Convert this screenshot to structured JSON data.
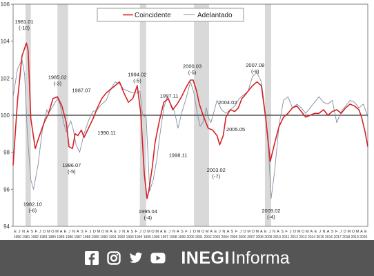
{
  "chart_data": {
    "type": "line",
    "legend": {
      "position": "top",
      "entries": [
        "Coincidente",
        "Adelantado"
      ]
    },
    "colors": {
      "Coincidente": "#d62027",
      "Adelantado": "#7f8f9f",
      "recession_band": "#d9d9d9",
      "reference_line": "#000000"
    },
    "ylim": [
      94,
      106
    ],
    "yticks": [
      "94",
      "96",
      "98",
      "100",
      "102",
      "104",
      "106"
    ],
    "reference_line": 100,
    "grid": false,
    "month_labels": [
      "E",
      "J",
      "N",
      "A",
      "S",
      "F",
      "J",
      "D",
      "M",
      "O",
      "M",
      "A",
      "E",
      "J",
      "N",
      "A",
      "S",
      "F",
      "J",
      "D",
      "M",
      "O",
      "M",
      "A",
      "E",
      "J",
      "N",
      "A",
      "S",
      "F",
      "J",
      "D",
      "M",
      "O",
      "M",
      "A",
      "E",
      "J",
      "N",
      "A",
      "S",
      "F",
      "J",
      "D",
      "M",
      "O",
      "M",
      "A",
      "E",
      "J",
      "N",
      "A",
      "S",
      "F",
      "J",
      "D",
      "M",
      "O",
      "M",
      "A",
      "E",
      "J",
      "N",
      "A",
      "S",
      "F",
      "J",
      "D",
      "M",
      "O",
      "M",
      "A",
      "E",
      "J",
      "N",
      "A",
      "S",
      "F",
      "J",
      "D",
      "M",
      "O",
      "M",
      "A",
      "E"
    ],
    "year_labels": [
      "1980",
      "1981",
      "1982",
      "1983",
      "1984",
      "1985",
      "1986",
      "1987",
      "1988",
      "1989",
      "1990",
      "1991",
      "1992",
      "1993",
      "1994",
      "1995",
      "1996",
      "1997",
      "1998",
      "1999",
      "2000",
      "2001",
      "2002",
      "2003",
      "2004",
      "2005",
      "2006",
      "2007",
      "2008",
      "2009",
      "2010",
      "2011",
      "2012",
      "2013",
      "2014",
      "2015",
      "2016",
      "2017",
      "2018",
      "2019",
      "2020"
    ],
    "recession_bands": [
      [
        1981.4,
        1982.0
      ],
      [
        1985.0,
        1986.2
      ],
      [
        1994.3,
        1995.0
      ],
      [
        2000.4,
        2002.1
      ],
      [
        2008.4,
        2009.1
      ]
    ],
    "series": [
      {
        "name": "Coincidente",
        "x": [
          1980.0,
          1980.5,
          1981.0,
          1981.5,
          1981.7,
          1982.0,
          1982.5,
          1982.9,
          1983.5,
          1984.0,
          1984.5,
          1985.0,
          1985.5,
          1986.0,
          1986.3,
          1986.7,
          1987.0,
          1987.3,
          1987.7,
          1988.0,
          1988.5,
          1989.0,
          1989.5,
          1990.0,
          1990.5,
          1991.0,
          1991.5,
          1992.0,
          1992.5,
          1993.0,
          1993.5,
          1994.0,
          1994.4,
          1994.8,
          1995.1,
          1995.3,
          1995.7,
          1996.0,
          1996.5,
          1997.0,
          1997.5,
          1998.0,
          1998.5,
          1999.0,
          1999.5,
          2000.0,
          2000.3,
          2000.7,
          2001.0,
          2001.5,
          2002.0,
          2002.5,
          2003.0,
          2003.3,
          2003.7,
          2004.0,
          2004.5,
          2005.0,
          2005.4,
          2005.8,
          2006.0,
          2006.5,
          2007.0,
          2007.5,
          2008.0,
          2008.5,
          2009.0,
          2009.2,
          2009.6,
          2010.0,
          2010.5,
          2011.0,
          2011.5,
          2012.0,
          2012.5,
          2013.0,
          2013.5,
          2014.0,
          2014.5,
          2015.0,
          2015.5,
          2016.0,
          2016.5,
          2017.0,
          2017.5,
          2018.0,
          2018.5,
          2019.0,
          2019.3,
          2019.7,
          2020.0
        ],
        "y": [
          97.3,
          100.8,
          103.2,
          103.9,
          103.5,
          99.8,
          98.2,
          98.8,
          99.6,
          100.1,
          100.9,
          101.0,
          100.5,
          99.6,
          98.3,
          98.2,
          99.0,
          98.9,
          99.2,
          98.8,
          99.3,
          99.8,
          100.4,
          100.9,
          101.2,
          101.4,
          101.6,
          101.8,
          101.2,
          100.7,
          100.9,
          101.6,
          100.1,
          96.8,
          95.5,
          95.9,
          97.2,
          98.5,
          99.7,
          100.7,
          100.9,
          100.3,
          100.6,
          101.0,
          101.5,
          101.9,
          101.9,
          101.3,
          100.6,
          99.9,
          99.3,
          99.2,
          98.9,
          98.4,
          98.9,
          99.9,
          100.3,
          100.2,
          100.4,
          100.9,
          101.0,
          101.3,
          101.6,
          101.8,
          101.6,
          99.8,
          97.5,
          97.9,
          98.7,
          99.4,
          99.9,
          100.1,
          100.4,
          100.5,
          100.2,
          99.9,
          100.0,
          100.1,
          100.1,
          100.3,
          100.0,
          100.2,
          100.3,
          100.1,
          100.4,
          100.6,
          100.5,
          100.3,
          99.9,
          99.1,
          98.3
        ]
      },
      {
        "name": "Adelantado",
        "x": [
          1980.0,
          1980.5,
          1981.0,
          1981.3,
          1981.6,
          1982.0,
          1982.3,
          1982.8,
          1983.3,
          1983.8,
          1984.0,
          1984.5,
          1985.0,
          1985.3,
          1985.7,
          1986.0,
          1986.5,
          1986.8,
          1987.1,
          1987.5,
          1988.0,
          1988.5,
          1989.0,
          1989.5,
          1990.0,
          1990.5,
          1991.0,
          1991.5,
          1992.0,
          1992.5,
          1993.0,
          1993.5,
          1994.0,
          1994.3,
          1994.6,
          1995.0,
          1995.4,
          1995.8,
          1996.2,
          1996.6,
          1997.0,
          1997.4,
          1997.8,
          1998.2,
          1998.6,
          1999.0,
          1999.5,
          2000.0,
          2000.4,
          2000.8,
          2001.1,
          2001.4,
          2001.8,
          2002.0,
          2002.3,
          2002.6,
          2003.0,
          2003.5,
          2004.0,
          2004.5,
          2005.0,
          2005.5,
          2006.0,
          2006.5,
          2007.0,
          2007.5,
          2008.0,
          2008.4,
          2008.8,
          2009.1,
          2009.5,
          2010.0,
          2010.5,
          2011.0,
          2011.5,
          2012.0,
          2012.5,
          2013.0,
          2013.5,
          2014.0,
          2014.5,
          2015.0,
          2015.5,
          2016.0,
          2016.5,
          2017.0,
          2017.5,
          2018.0,
          2018.5,
          2019.0,
          2019.5,
          2020.0
        ],
        "y": [
          101.0,
          102.5,
          103.0,
          102.2,
          99.0,
          96.5,
          96.0,
          97.3,
          99.2,
          100.3,
          100.1,
          100.5,
          100.9,
          100.6,
          99.6,
          99.1,
          99.7,
          99.2,
          98.4,
          98.0,
          99.0,
          99.7,
          100.2,
          100.3,
          100.6,
          100.8,
          101.4,
          101.8,
          101.7,
          101.4,
          101.3,
          101.2,
          101.2,
          101.3,
          100.0,
          99.9,
          95.9,
          96.5,
          97.6,
          99.1,
          100.4,
          101.0,
          100.6,
          100.2,
          99.3,
          100.1,
          100.9,
          101.8,
          101.2,
          100.0,
          99.4,
          99.6,
          100.4,
          99.9,
          99.6,
          100.1,
          100.8,
          100.3,
          100.1,
          100.3,
          100.5,
          100.9,
          101.1,
          101.3,
          102.1,
          102.3,
          101.8,
          100.3,
          98.2,
          95.5,
          97.0,
          99.5,
          100.8,
          101.0,
          100.4,
          100.6,
          100.4,
          100.1,
          100.4,
          100.7,
          101.0,
          100.7,
          100.6,
          100.8,
          99.6,
          100.2,
          100.5,
          100.8,
          100.7,
          100.4,
          100.6,
          99.9
        ]
      }
    ],
    "annotations": [
      {
        "text": [
          "1981.01",
          "(-10)"
        ],
        "x": 1981.25,
        "y": 104.95
      },
      {
        "text": [
          "1982.10",
          "(-6)"
        ],
        "x": 1982.2,
        "y": 95.1
      },
      {
        "text": [
          "1985.02",
          "(-3)"
        ],
        "x": 1985.0,
        "y": 101.95
      },
      {
        "text": [
          "1987.07"
        ],
        "x": 1987.7,
        "y": 101.25
      },
      {
        "text": [
          "1986.07",
          "(-5)"
        ],
        "x": 1986.6,
        "y": 97.2
      },
      {
        "text": [
          "1990.11"
        ],
        "x": 1990.55,
        "y": 98.95
      },
      {
        "text": [
          "1994.02",
          "(-5)"
        ],
        "x": 1994.0,
        "y": 102.1
      },
      {
        "text": [
          "1997.11"
        ],
        "x": 1997.6,
        "y": 100.95
      },
      {
        "text": [
          "1995.04",
          "(-4)"
        ],
        "x": 1995.2,
        "y": 94.7
      },
      {
        "text": [
          "1998.11"
        ],
        "x": 1998.6,
        "y": 97.75
      },
      {
        "text": [
          "2000.03",
          "(-5)"
        ],
        "x": 2000.2,
        "y": 102.55
      },
      {
        "text": [
          "2004.02"
        ],
        "x": 2004.2,
        "y": 100.6
      },
      {
        "text": [
          "2003.02",
          "(-7)"
        ],
        "x": 2002.9,
        "y": 96.95
      },
      {
        "text": [
          "2005.05"
        ],
        "x": 2005.1,
        "y": 99.15
      },
      {
        "text": [
          "2007.08",
          "(-9)"
        ],
        "x": 2007.3,
        "y": 102.6
      },
      {
        "text": [
          "2009.02",
          "(-4)"
        ],
        "x": 2009.1,
        "y": 94.75
      }
    ]
  },
  "footer": {
    "social_icons": [
      "facebook-icon",
      "instagram-icon",
      "twitter-icon",
      "youtube-icon"
    ],
    "brand_bold": "INEGI",
    "brand_light": "Informa"
  }
}
